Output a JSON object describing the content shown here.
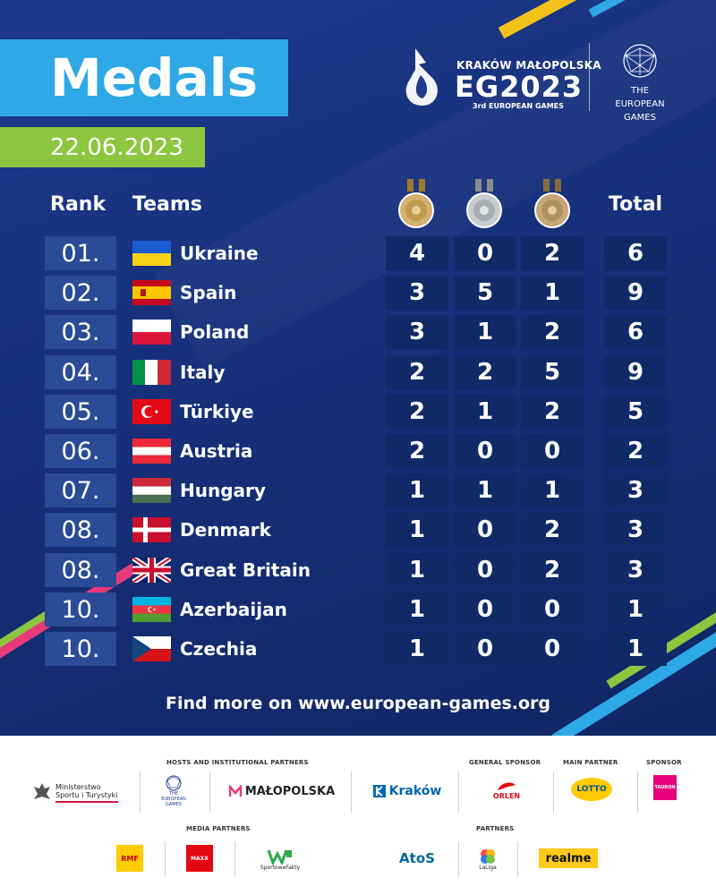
{
  "header": {
    "title": "Medals",
    "date": "22.06.2023",
    "logo": {
      "city_line": "KRAKÓW MAŁOPOLSKA",
      "wordmark": "EG2023",
      "tagline": "3rd EUROPEAN GAMES",
      "org_line1": "THE",
      "org_line2": "EUROPEAN",
      "org_line3": "GAMES"
    }
  },
  "columns": {
    "rank": "Rank",
    "teams": "Teams",
    "total": "Total",
    "medals": [
      "gold-medal-icon",
      "silver-medal-icon",
      "bronze-medal-icon"
    ]
  },
  "rows": [
    {
      "rank": "01.",
      "team": "Ukraine",
      "flag": "ukraine",
      "gold": "4",
      "silver": "0",
      "bronze": "2",
      "total": "6"
    },
    {
      "rank": "02.",
      "team": "Spain",
      "flag": "spain",
      "gold": "3",
      "silver": "5",
      "bronze": "1",
      "total": "9"
    },
    {
      "rank": "03.",
      "team": "Poland",
      "flag": "poland",
      "gold": "3",
      "silver": "1",
      "bronze": "2",
      "total": "6"
    },
    {
      "rank": "04.",
      "team": "Italy",
      "flag": "italy",
      "gold": "2",
      "silver": "2",
      "bronze": "5",
      "total": "9"
    },
    {
      "rank": "05.",
      "team": "Türkiye",
      "flag": "turkiye",
      "gold": "2",
      "silver": "1",
      "bronze": "2",
      "total": "5"
    },
    {
      "rank": "06.",
      "team": "Austria",
      "flag": "austria",
      "gold": "2",
      "silver": "0",
      "bronze": "0",
      "total": "2"
    },
    {
      "rank": "07.",
      "team": "Hungary",
      "flag": "hungary",
      "gold": "1",
      "silver": "1",
      "bronze": "1",
      "total": "3"
    },
    {
      "rank": "08.",
      "team": "Denmark",
      "flag": "denmark",
      "gold": "1",
      "silver": "0",
      "bronze": "2",
      "total": "3"
    },
    {
      "rank": "08.",
      "team": "Great Britain",
      "flag": "great-britain",
      "gold": "1",
      "silver": "0",
      "bronze": "2",
      "total": "3"
    },
    {
      "rank": "10.",
      "team": "Azerbaijan",
      "flag": "azerbaijan",
      "gold": "1",
      "silver": "0",
      "bronze": "0",
      "total": "1"
    },
    {
      "rank": "10.",
      "team": "Czechia",
      "flag": "czechia",
      "gold": "1",
      "silver": "0",
      "bronze": "0",
      "total": "1"
    }
  ],
  "footer_link": "Find more on www.european-games.org",
  "sponsors": {
    "hosts_label": "HOSTS AND INSTITUTIONAL PARTNERS",
    "general_label": "GENERAL SPONSOR",
    "main_label": "MAIN PARTNER",
    "sponsor_label": "SPONSOR",
    "media_label": "MEDIA PARTNERS",
    "partners_label": "PARTNERS",
    "ministry_line1": "Ministerstwo",
    "ministry_line2": "Sportu i Turystyki",
    "eg_small_line1": "THE",
    "eg_small_line2": "EUROPEAN",
    "eg_small_line3": "GAMES",
    "malopolska": "MAŁOPOLSKA",
    "krakow": "Kraków",
    "orlen": "ORLEN",
    "lotto": "LOTTO",
    "tauron": "TAURON",
    "rmf": "RMF",
    "maxx": "MAXX",
    "sportowe": "SportoweFakty",
    "atos": "AtoS",
    "laliga": "LaLiga",
    "realme": "realme"
  },
  "colors": {
    "title_bg": "#2ea8e6",
    "date_bg": "#8dc63f",
    "rank_bg": "#2a4b96",
    "num_bg": "#0f2a66"
  }
}
